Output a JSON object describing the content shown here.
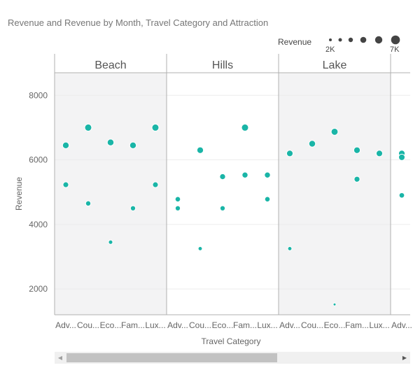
{
  "title": "Revenue and Revenue by Month, Travel Category and Attraction",
  "size_legend": {
    "label": "Revenue",
    "min_label": "2K",
    "max_label": "7K",
    "color": "#444444"
  },
  "colors": {
    "point": "#1ab5a7",
    "panel_shaded": "#f3f3f4",
    "panel_border": "#b0b0b0",
    "grid": "#ececec"
  },
  "chart_data": {
    "type": "scatter",
    "title": "Revenue and Revenue by Month, Travel Category and Attraction",
    "xlabel": "Travel Category",
    "ylabel": "Revenue",
    "ylim": [
      1200,
      8700
    ],
    "yticks": [
      2000,
      4000,
      6000,
      8000
    ],
    "ytick_labels": [
      "2000",
      "4000",
      "6000",
      "8000"
    ],
    "grid": true,
    "size_encoding": "Revenue",
    "facets": [
      {
        "name": "Beach",
        "shaded": true,
        "categories": [
          "Adv...",
          "Cou...",
          "Eco...",
          "Fam...",
          "Lux..."
        ],
        "points": [
          {
            "cat": 0,
            "y": 6450
          },
          {
            "cat": 0,
            "y": 5230
          },
          {
            "cat": 1,
            "y": 7000
          },
          {
            "cat": 1,
            "y": 4650
          },
          {
            "cat": 2,
            "y": 6540
          },
          {
            "cat": 2,
            "y": 3450
          },
          {
            "cat": 3,
            "y": 6450
          },
          {
            "cat": 3,
            "y": 4500
          },
          {
            "cat": 4,
            "y": 7000
          },
          {
            "cat": 4,
            "y": 5230
          }
        ]
      },
      {
        "name": "Hills",
        "shaded": false,
        "categories": [
          "Adv...",
          "Cou...",
          "Eco...",
          "Fam...",
          "Lux..."
        ],
        "points": [
          {
            "cat": 0,
            "y": 4780
          },
          {
            "cat": 0,
            "y": 4500
          },
          {
            "cat": 1,
            "y": 6300
          },
          {
            "cat": 1,
            "y": 3250
          },
          {
            "cat": 2,
            "y": 5480
          },
          {
            "cat": 2,
            "y": 4500
          },
          {
            "cat": 3,
            "y": 7000
          },
          {
            "cat": 3,
            "y": 5530
          },
          {
            "cat": 4,
            "y": 5530
          },
          {
            "cat": 4,
            "y": 4780
          }
        ]
      },
      {
        "name": "Lake",
        "shaded": true,
        "categories": [
          "Adv...",
          "Cou...",
          "Eco...",
          "Fam...",
          "Lux..."
        ],
        "points": [
          {
            "cat": 0,
            "y": 6200
          },
          {
            "cat": 0,
            "y": 3250
          },
          {
            "cat": 1,
            "y": 6500
          },
          {
            "cat": 2,
            "y": 6870
          },
          {
            "cat": 2,
            "y": 1520
          },
          {
            "cat": 3,
            "y": 6300
          },
          {
            "cat": 3,
            "y": 5400
          },
          {
            "cat": 4,
            "y": 6200
          }
        ]
      },
      {
        "name": "",
        "shaded": false,
        "partial": true,
        "categories": [
          "Adv..."
        ],
        "points": [
          {
            "cat": 0,
            "y": 6200
          },
          {
            "cat": 0,
            "y": 6080
          },
          {
            "cat": 0,
            "y": 4900
          }
        ]
      }
    ]
  }
}
